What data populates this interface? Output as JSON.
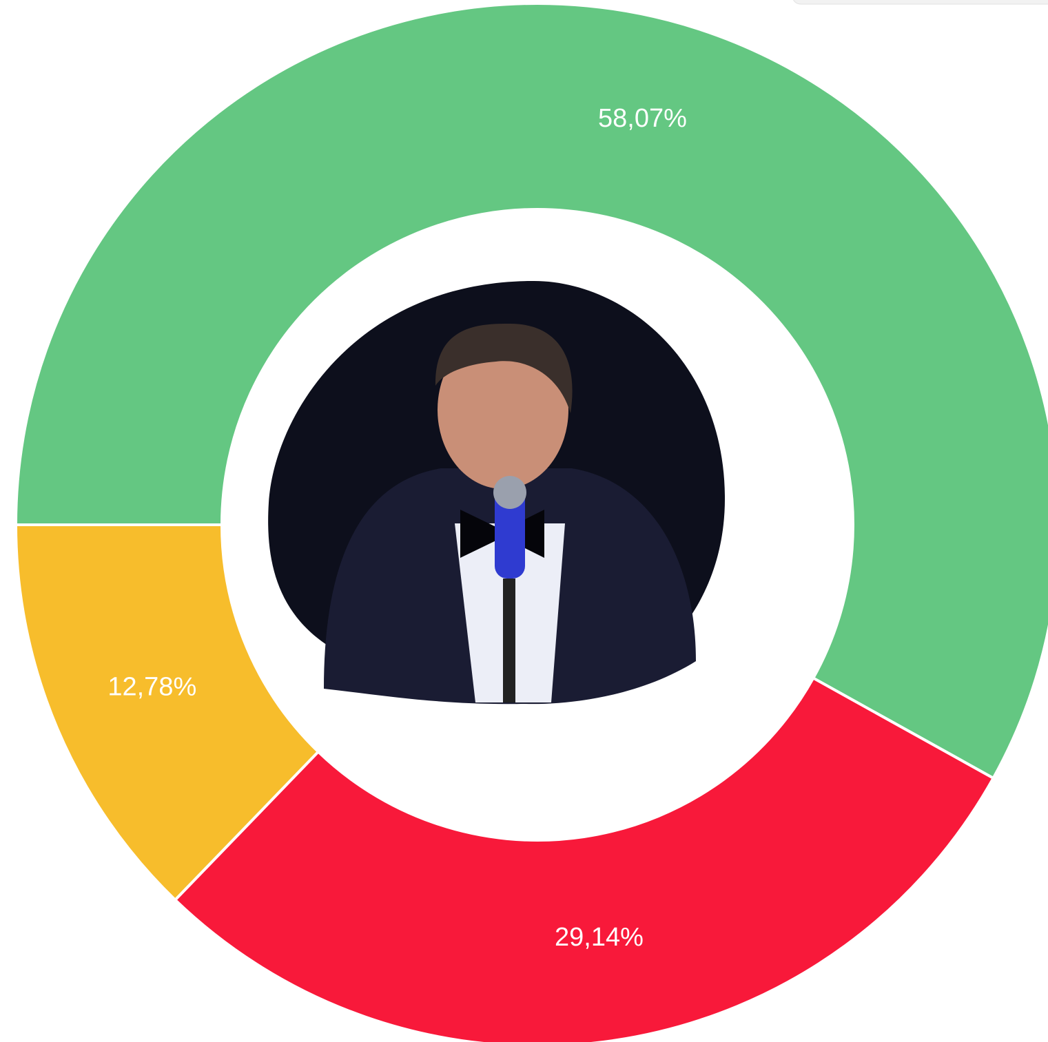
{
  "chart_data": {
    "type": "donut",
    "values": [
      58.07,
      29.14,
      12.78
    ],
    "value_labels": [
      "58,07%",
      "29,14%",
      "12,78%"
    ],
    "colors": [
      "#64c782",
      "#f8193a",
      "#f7bd2c"
    ]
  }
}
